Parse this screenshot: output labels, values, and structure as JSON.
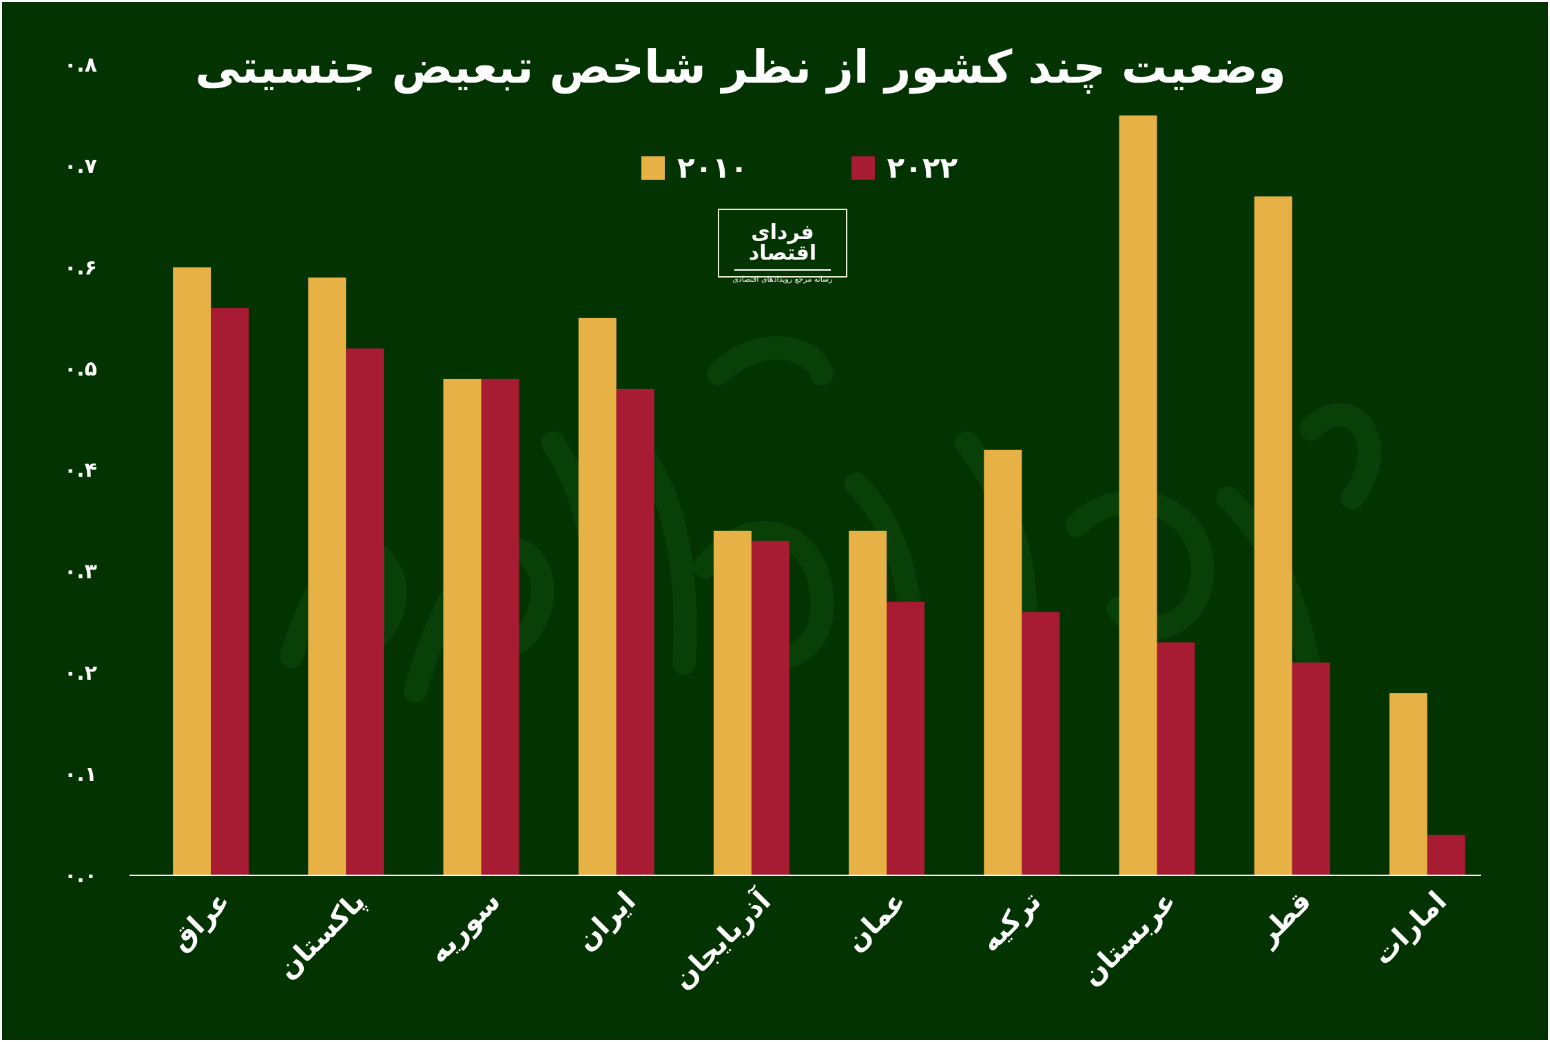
{
  "chart_data": {
    "type": "bar",
    "title": "وضعیت چند کشور از نظر شاخص تبعیض جنسیتی",
    "categories": [
      "عراق",
      "پاکستان",
      "سوریه",
      "ایران",
      "آذربایجان",
      "عمان",
      "ترکیه",
      "عربستان",
      "قطر",
      "امارات"
    ],
    "series": [
      {
        "name": "۲۰۱۰",
        "color": "#e8b145",
        "values": [
          0.6,
          0.59,
          0.49,
          0.55,
          0.34,
          0.34,
          0.42,
          0.75,
          0.67,
          0.18
        ]
      },
      {
        "name": "۲۰۲۲",
        "color": "#a81c33",
        "values": [
          0.56,
          0.52,
          0.49,
          0.48,
          0.33,
          0.27,
          0.26,
          0.23,
          0.21,
          0.04
        ]
      }
    ],
    "yticks": [
      "۰.۰",
      "۰.۱",
      "۰.۲",
      "۰.۳",
      "۰.۴",
      "۰.۵",
      "۰.۶",
      "۰.۷",
      "۰.۸"
    ],
    "ylim": [
      0,
      0.8
    ],
    "grid": false,
    "legend_position": "top-center",
    "xlabel": "",
    "ylabel": ""
  },
  "logo": {
    "name": "فردای اقتصاد",
    "tagline": "رسانه مرجع رویدادهای اقتصادی"
  },
  "colors": {
    "background": "#023300",
    "text": "#ffffff",
    "axis": "#ffffff"
  }
}
